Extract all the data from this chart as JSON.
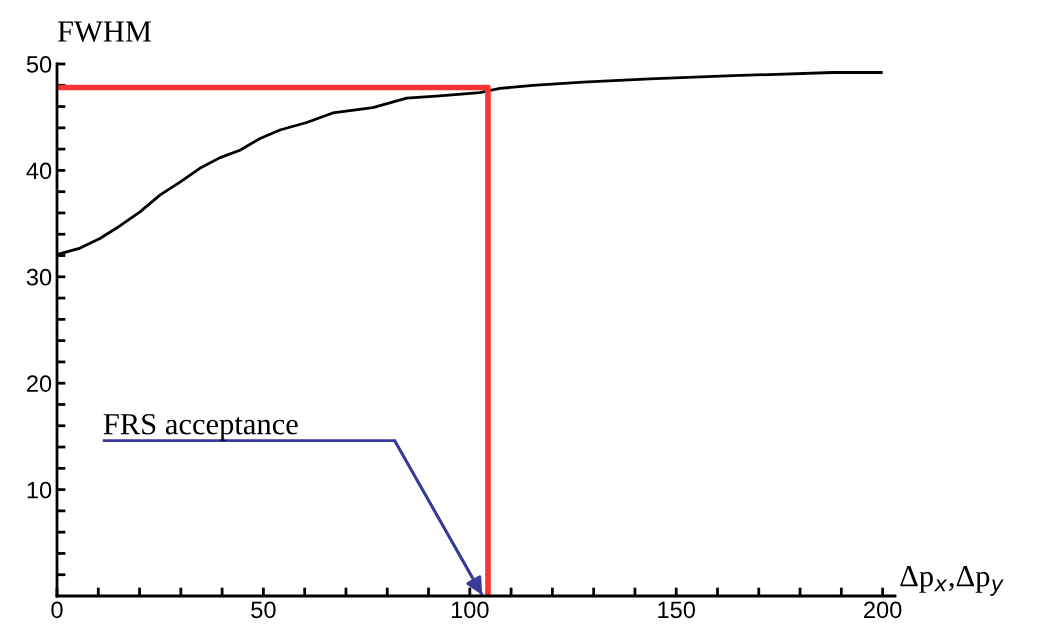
{
  "chart_data": {
    "type": "line",
    "xlabel": "Δp$_{x}$,Δp$_{y}$",
    "ylabel": "FWHM",
    "xlim": [
      0,
      203
    ],
    "ylim": [
      0,
      50
    ],
    "xticks": [
      0,
      {
        "value": 10,
        "label": null
      },
      {
        "value": 20,
        "label": null
      },
      {
        "value": 30,
        "label": null
      },
      {
        "value": 40,
        "label": null
      },
      50,
      {
        "value": 60,
        "label": null
      },
      {
        "value": 70,
        "label": null
      },
      {
        "value": 80,
        "label": null
      },
      {
        "value": 90,
        "label": null
      },
      100,
      {
        "value": 110,
        "label": null
      },
      {
        "value": 120,
        "label": null
      },
      {
        "value": 130,
        "label": null
      },
      {
        "value": 140,
        "label": null
      },
      150,
      {
        "value": 160,
        "label": null
      },
      {
        "value": 170,
        "label": null
      },
      {
        "value": 180,
        "label": null
      },
      {
        "value": 190,
        "label": null
      },
      200
    ],
    "yticks": [
      {
        "value": 2,
        "label": null
      },
      {
        "value": 4,
        "label": null
      },
      {
        "value": 6,
        "label": null
      },
      {
        "value": 8,
        "label": null
      },
      10,
      {
        "value": 12,
        "label": null
      },
      {
        "value": 14,
        "label": null
      },
      {
        "value": 16,
        "label": null
      },
      {
        "value": 18,
        "label": null
      },
      20,
      {
        "value": 22,
        "label": null
      },
      {
        "value": 24,
        "label": null
      },
      {
        "value": 26,
        "label": null
      },
      {
        "value": 28,
        "label": null
      },
      30,
      {
        "value": 32,
        "label": null
      },
      {
        "value": 34,
        "label": null
      },
      {
        "value": 36,
        "label": null
      },
      {
        "value": 38,
        "label": null
      },
      40,
      {
        "value": 42,
        "label": null
      },
      {
        "value": 44,
        "label": null
      },
      {
        "value": 46,
        "label": null
      },
      {
        "value": 48,
        "label": null
      },
      50
    ],
    "grid": false,
    "legend": false,
    "marker": "none",
    "line_style": "solid",
    "series": [
      {
        "color": "#000000",
        "x": [
          0.2,
          5.6,
          10.4,
          15.3,
          20.1,
          25,
          29.8,
          34.6,
          39.5,
          44.3,
          49.2,
          54,
          60.5,
          66.8,
          76.5,
          84.7,
          92.7,
          102.4,
          107.3,
          115.3,
          127.4,
          143.6,
          163.7,
          187.9,
          200
        ],
        "values": [
          32.1,
          32.7,
          33.6,
          34.8,
          36.1,
          37.7,
          38.9,
          40.2,
          41.2,
          41.9,
          43.0,
          43.8,
          44.5,
          45.4,
          45.9,
          46.8,
          47.0,
          47.3,
          47.7,
          48.0,
          48.3,
          48.6,
          48.9,
          49.2,
          49.2
        ]
      },
      {
        "color": "#ff3333",
        "x": [
          0,
          104.4,
          104.4
        ],
        "values": [
          47.8,
          47.8,
          0
        ]
      },
      {
        "name": "FRS acceptance",
        "color": "#3a3a9a",
        "x": [
          11.1,
          81.8,
          103
        ],
        "values": [
          14.6,
          14.6,
          0.1
        ]
      }
    ]
  }
}
